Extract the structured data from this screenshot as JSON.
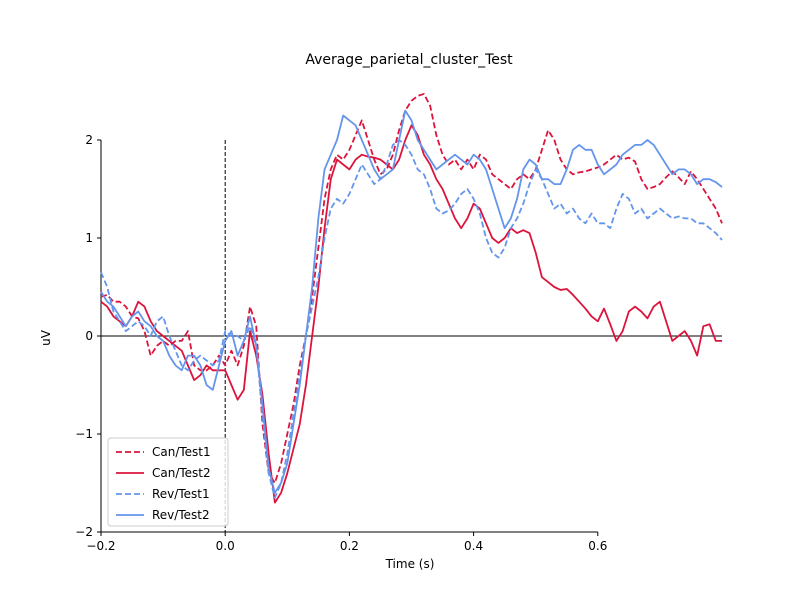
{
  "chart_data": {
    "type": "line",
    "title": "Average_parietal_cluster_Test",
    "xlabel": "Time (s)",
    "ylabel": "uV",
    "xlim": [
      -0.2,
      0.8
    ],
    "ylim": [
      -2,
      2
    ],
    "x_ticks": [
      -0.2,
      0.0,
      0.2,
      0.4,
      0.6
    ],
    "x_tick_labels": [
      "−0.2",
      "0.0",
      "0.2",
      "0.4",
      "0.6"
    ],
    "y_ticks": [
      -2,
      -1,
      0,
      1,
      2
    ],
    "y_tick_labels": [
      "−2",
      "−1",
      "0",
      "1",
      "2"
    ],
    "zero_line": true,
    "stimulus_onset_line": 0.0,
    "grid": false,
    "legend_position": "lower-left",
    "series": [
      {
        "name": "Can/Test1",
        "color": "#dc143c",
        "line_style": "dashed",
        "x": [
          -0.2,
          -0.19,
          -0.18,
          -0.17,
          -0.16,
          -0.15,
          -0.14,
          -0.13,
          -0.12,
          -0.11,
          -0.1,
          -0.09,
          -0.08,
          -0.07,
          -0.06,
          -0.05,
          -0.04,
          -0.03,
          -0.02,
          -0.01,
          0.0,
          0.01,
          0.02,
          0.03,
          0.04,
          0.05,
          0.06,
          0.07,
          0.08,
          0.09,
          0.1,
          0.11,
          0.12,
          0.13,
          0.14,
          0.15,
          0.16,
          0.17,
          0.18,
          0.19,
          0.2,
          0.21,
          0.22,
          0.23,
          0.24,
          0.25,
          0.26,
          0.27,
          0.28,
          0.29,
          0.3,
          0.31,
          0.32,
          0.33,
          0.34,
          0.35,
          0.36,
          0.37,
          0.38,
          0.39,
          0.4,
          0.41,
          0.42,
          0.43,
          0.44,
          0.45,
          0.46,
          0.47,
          0.48,
          0.49,
          0.5,
          0.51,
          0.52,
          0.53,
          0.54,
          0.55,
          0.56,
          0.57,
          0.58,
          0.59,
          0.6,
          0.61,
          0.62,
          0.63,
          0.64,
          0.65,
          0.66,
          0.67,
          0.68,
          0.69,
          0.7,
          0.71,
          0.72,
          0.73,
          0.74,
          0.75,
          0.76,
          0.77,
          0.78,
          0.79,
          0.8
        ],
        "values": [
          0.4,
          0.42,
          0.35,
          0.35,
          0.3,
          0.2,
          0.18,
          0.05,
          -0.2,
          -0.1,
          -0.05,
          -0.1,
          -0.05,
          -0.05,
          0.05,
          -0.3,
          -0.35,
          -0.35,
          -0.3,
          -0.2,
          -0.3,
          -0.15,
          -0.3,
          -0.1,
          0.3,
          0.1,
          -0.9,
          -1.4,
          -1.5,
          -1.3,
          -1.0,
          -0.7,
          -0.3,
          0.0,
          0.4,
          0.9,
          1.4,
          1.7,
          1.85,
          1.8,
          1.9,
          2.05,
          2.2,
          2.0,
          1.8,
          1.65,
          1.7,
          1.85,
          2.1,
          2.3,
          2.4,
          2.45,
          2.47,
          2.35,
          2.05,
          1.85,
          1.75,
          1.8,
          1.7,
          1.8,
          1.7,
          1.85,
          1.8,
          1.65,
          1.6,
          1.55,
          1.5,
          1.6,
          1.65,
          1.6,
          1.7,
          1.9,
          2.1,
          2.0,
          1.8,
          1.7,
          1.65,
          1.67,
          1.68,
          1.7,
          1.72,
          1.75,
          1.8,
          1.85,
          1.8,
          1.82,
          1.78,
          1.6,
          1.5,
          1.52,
          1.55,
          1.62,
          1.68,
          1.62,
          1.55,
          1.68,
          1.6,
          1.5,
          1.4,
          1.3,
          1.15
        ]
      },
      {
        "name": "Can/Test2",
        "color": "#dc143c",
        "line_style": "solid",
        "x": [
          -0.2,
          -0.19,
          -0.18,
          -0.17,
          -0.16,
          -0.15,
          -0.14,
          -0.13,
          -0.12,
          -0.11,
          -0.1,
          -0.09,
          -0.08,
          -0.07,
          -0.06,
          -0.05,
          -0.04,
          -0.03,
          -0.02,
          -0.01,
          0.0,
          0.01,
          0.02,
          0.03,
          0.04,
          0.05,
          0.06,
          0.07,
          0.08,
          0.09,
          0.1,
          0.11,
          0.12,
          0.13,
          0.14,
          0.15,
          0.16,
          0.17,
          0.18,
          0.19,
          0.2,
          0.21,
          0.22,
          0.23,
          0.24,
          0.25,
          0.26,
          0.27,
          0.28,
          0.29,
          0.3,
          0.31,
          0.32,
          0.33,
          0.34,
          0.35,
          0.36,
          0.37,
          0.38,
          0.39,
          0.4,
          0.41,
          0.42,
          0.43,
          0.44,
          0.45,
          0.46,
          0.47,
          0.48,
          0.49,
          0.5,
          0.51,
          0.52,
          0.53,
          0.54,
          0.55,
          0.56,
          0.57,
          0.58,
          0.59,
          0.6,
          0.61,
          0.62,
          0.63,
          0.64,
          0.65,
          0.66,
          0.67,
          0.68,
          0.69,
          0.7,
          0.71,
          0.72,
          0.73,
          0.74,
          0.75,
          0.76,
          0.77,
          0.78,
          0.79,
          0.8
        ],
        "values": [
          0.35,
          0.3,
          0.2,
          0.15,
          0.1,
          0.2,
          0.35,
          0.3,
          0.15,
          0.05,
          0.0,
          -0.05,
          -0.1,
          -0.15,
          -0.3,
          -0.45,
          -0.4,
          -0.3,
          -0.35,
          -0.35,
          -0.35,
          -0.5,
          -0.65,
          -0.55,
          0.05,
          -0.2,
          -0.6,
          -1.2,
          -1.7,
          -1.6,
          -1.4,
          -1.15,
          -0.9,
          -0.5,
          0.0,
          0.5,
          1.1,
          1.6,
          1.8,
          1.75,
          1.7,
          1.8,
          1.85,
          1.83,
          1.82,
          1.8,
          1.75,
          1.7,
          1.8,
          2.0,
          2.15,
          2.05,
          1.85,
          1.75,
          1.6,
          1.5,
          1.35,
          1.2,
          1.1,
          1.2,
          1.35,
          1.3,
          1.15,
          1.0,
          0.95,
          1.0,
          1.1,
          1.05,
          1.08,
          1.05,
          0.85,
          0.6,
          0.55,
          0.5,
          0.47,
          0.48,
          0.42,
          0.35,
          0.28,
          0.2,
          0.15,
          0.28,
          0.12,
          -0.05,
          0.05,
          0.25,
          0.3,
          0.25,
          0.18,
          0.3,
          0.35,
          0.15,
          -0.05,
          0.0,
          0.05,
          -0.05,
          -0.2,
          0.1,
          0.12,
          -0.05,
          -0.05
        ]
      },
      {
        "name": "Rev/Test1",
        "color": "#6495ed",
        "line_style": "dashed",
        "x": [
          -0.2,
          -0.19,
          -0.18,
          -0.17,
          -0.16,
          -0.15,
          -0.14,
          -0.13,
          -0.12,
          -0.11,
          -0.1,
          -0.09,
          -0.08,
          -0.07,
          -0.06,
          -0.05,
          -0.04,
          -0.03,
          -0.02,
          -0.01,
          0.0,
          0.01,
          0.02,
          0.03,
          0.04,
          0.05,
          0.06,
          0.07,
          0.08,
          0.09,
          0.1,
          0.11,
          0.12,
          0.13,
          0.14,
          0.15,
          0.16,
          0.17,
          0.18,
          0.19,
          0.2,
          0.21,
          0.22,
          0.23,
          0.24,
          0.25,
          0.26,
          0.27,
          0.28,
          0.29,
          0.3,
          0.31,
          0.32,
          0.33,
          0.34,
          0.35,
          0.36,
          0.37,
          0.38,
          0.39,
          0.4,
          0.41,
          0.42,
          0.43,
          0.44,
          0.45,
          0.46,
          0.47,
          0.48,
          0.49,
          0.5,
          0.51,
          0.52,
          0.53,
          0.54,
          0.55,
          0.56,
          0.57,
          0.58,
          0.59,
          0.6,
          0.61,
          0.62,
          0.63,
          0.64,
          0.65,
          0.66,
          0.67,
          0.68,
          0.69,
          0.7,
          0.71,
          0.72,
          0.73,
          0.74,
          0.75,
          0.76,
          0.77,
          0.78,
          0.79,
          0.8
        ],
        "values": [
          0.65,
          0.5,
          0.25,
          0.15,
          0.05,
          0.1,
          0.15,
          0.1,
          0.0,
          0.15,
          0.2,
          0.0,
          -0.15,
          -0.3,
          -0.35,
          -0.25,
          -0.2,
          -0.25,
          -0.3,
          -0.25,
          0.05,
          0.0,
          0.0,
          -0.05,
          0.1,
          -0.1,
          -0.8,
          -1.4,
          -1.65,
          -1.5,
          -1.2,
          -0.8,
          -0.4,
          0.0,
          0.3,
          0.6,
          1.0,
          1.3,
          1.4,
          1.35,
          1.45,
          1.6,
          1.75,
          1.65,
          1.55,
          1.6,
          1.75,
          1.95,
          2.0,
          1.95,
          1.85,
          1.7,
          1.65,
          1.5,
          1.3,
          1.25,
          1.28,
          1.35,
          1.45,
          1.5,
          1.4,
          1.25,
          1.0,
          0.85,
          0.8,
          0.9,
          1.1,
          1.2,
          1.35,
          1.55,
          1.7,
          1.6,
          1.45,
          1.3,
          1.35,
          1.25,
          1.3,
          1.2,
          1.15,
          1.25,
          1.15,
          1.15,
          1.1,
          1.3,
          1.45,
          1.4,
          1.25,
          1.3,
          1.2,
          1.25,
          1.3,
          1.25,
          1.2,
          1.22,
          1.2,
          1.2,
          1.15,
          1.15,
          1.1,
          1.05,
          0.98
        ]
      },
      {
        "name": "Rev/Test2",
        "color": "#6495ed",
        "line_style": "solid",
        "x": [
          -0.2,
          -0.19,
          -0.18,
          -0.17,
          -0.16,
          -0.15,
          -0.14,
          -0.13,
          -0.12,
          -0.11,
          -0.1,
          -0.09,
          -0.08,
          -0.07,
          -0.06,
          -0.05,
          -0.04,
          -0.03,
          -0.02,
          -0.01,
          0.0,
          0.01,
          0.02,
          0.03,
          0.04,
          0.05,
          0.06,
          0.07,
          0.08,
          0.09,
          0.1,
          0.11,
          0.12,
          0.13,
          0.14,
          0.15,
          0.16,
          0.17,
          0.18,
          0.19,
          0.2,
          0.21,
          0.22,
          0.23,
          0.24,
          0.25,
          0.26,
          0.27,
          0.28,
          0.29,
          0.3,
          0.31,
          0.32,
          0.33,
          0.34,
          0.35,
          0.36,
          0.37,
          0.38,
          0.39,
          0.4,
          0.41,
          0.42,
          0.43,
          0.44,
          0.45,
          0.46,
          0.47,
          0.48,
          0.49,
          0.5,
          0.51,
          0.52,
          0.53,
          0.54,
          0.55,
          0.56,
          0.57,
          0.58,
          0.59,
          0.6,
          0.61,
          0.62,
          0.63,
          0.64,
          0.65,
          0.66,
          0.67,
          0.68,
          0.69,
          0.7,
          0.71,
          0.72,
          0.73,
          0.74,
          0.75,
          0.76,
          0.77,
          0.78,
          0.79,
          0.8
        ],
        "values": [
          0.45,
          0.35,
          0.3,
          0.2,
          0.1,
          0.2,
          0.25,
          0.15,
          0.1,
          0.0,
          -0.05,
          -0.2,
          -0.3,
          -0.35,
          -0.2,
          -0.2,
          -0.3,
          -0.5,
          -0.55,
          -0.3,
          -0.05,
          0.05,
          -0.2,
          -0.05,
          0.2,
          -0.1,
          -0.7,
          -1.35,
          -1.6,
          -1.5,
          -1.3,
          -0.9,
          -0.5,
          0.0,
          0.5,
          1.2,
          1.7,
          1.85,
          2.0,
          2.25,
          2.2,
          2.15,
          2.0,
          1.85,
          1.7,
          1.6,
          1.65,
          1.7,
          2.0,
          2.3,
          2.2,
          2.0,
          1.9,
          1.8,
          1.7,
          1.75,
          1.8,
          1.85,
          1.8,
          1.75,
          1.85,
          1.8,
          1.7,
          1.5,
          1.3,
          1.1,
          1.2,
          1.4,
          1.7,
          1.8,
          1.75,
          1.6,
          1.6,
          1.55,
          1.55,
          1.7,
          1.9,
          1.95,
          1.9,
          1.9,
          1.75,
          1.65,
          1.7,
          1.75,
          1.85,
          1.9,
          1.95,
          1.95,
          2.0,
          1.95,
          1.85,
          1.75,
          1.65,
          1.7,
          1.7,
          1.65,
          1.55,
          1.6,
          1.6,
          1.57,
          1.52
        ]
      }
    ]
  }
}
